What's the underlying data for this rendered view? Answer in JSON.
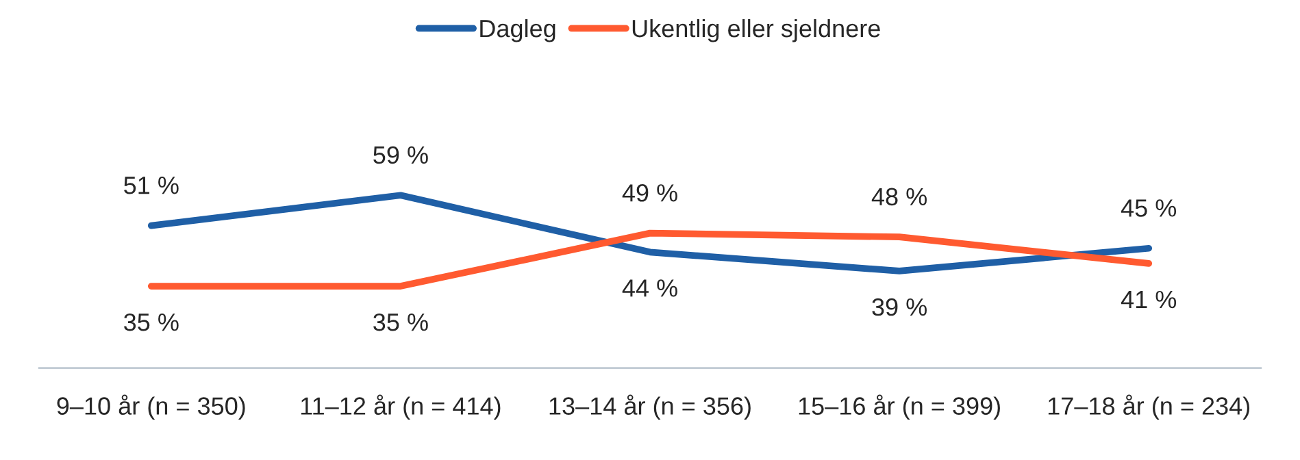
{
  "chart_data": {
    "type": "line",
    "categories": [
      "9–10 år (n = 350)",
      "11–12 år (n = 414)",
      "13–14 år (n = 356)",
      "15–16 år (n = 399)",
      "17–18 år (n = 234)"
    ],
    "series": [
      {
        "name": "Dagleg",
        "color": "#1f5fa6",
        "values": [
          51,
          59,
          44,
          39,
          45
        ],
        "value_labels": [
          "51 %",
          "59 %",
          "44 %",
          "39 %",
          "45 %"
        ]
      },
      {
        "name": "Ukentlig eller sjeldnere",
        "color": "#ff5a30",
        "values": [
          35,
          35,
          49,
          48,
          41
        ],
        "value_labels": [
          "35 %",
          "35 %",
          "49 %",
          "48 %",
          "41 %"
        ]
      }
    ],
    "legend": "top",
    "grid": false,
    "marker": "none",
    "line_style": "solid"
  }
}
